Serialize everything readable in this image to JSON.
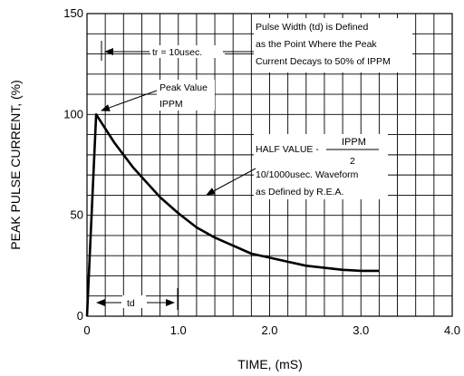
{
  "chart_data": {
    "type": "line",
    "xlabel": "TIME, (mS)",
    "ylabel": "PEAK PULSE CURRENT, (%)",
    "xlim": [
      0,
      4.0
    ],
    "ylim": [
      0,
      150
    ],
    "x_ticks": [
      "0",
      "1.0",
      "2.0",
      "3.0",
      "4.0"
    ],
    "y_ticks": [
      "0",
      "50",
      "100",
      "150"
    ],
    "grid": true,
    "series": [
      {
        "x": [
          0,
          0.1,
          0.2,
          0.3,
          0.4,
          0.5,
          0.6,
          0.7,
          0.8,
          0.9,
          1.0,
          1.2,
          1.4,
          1.6,
          1.8,
          2.0,
          2.2,
          2.4,
          2.6,
          2.8,
          3.0,
          3.2
        ],
        "y": [
          0,
          100,
          93,
          86,
          80,
          74,
          69,
          64,
          59,
          55,
          51,
          44,
          39,
          35,
          31,
          29,
          27,
          25,
          24,
          23,
          22.5,
          22.5
        ]
      }
    ],
    "annotations": {
      "tr": "tr = 10usec.",
      "pulse_width": [
        "Pulse Width (td) is Defined",
        "as the Point Where the Peak",
        "Current Decays to 50% of IPPM"
      ],
      "peak": [
        "Peak Value",
        "IPPM"
      ],
      "half_value_label": "HALF VALUE -",
      "half_value_num": "IPPM",
      "half_value_den": "2",
      "waveform": [
        "10/1000usec. Waveform",
        "as Defined by R.E.A."
      ],
      "td": "td"
    }
  }
}
